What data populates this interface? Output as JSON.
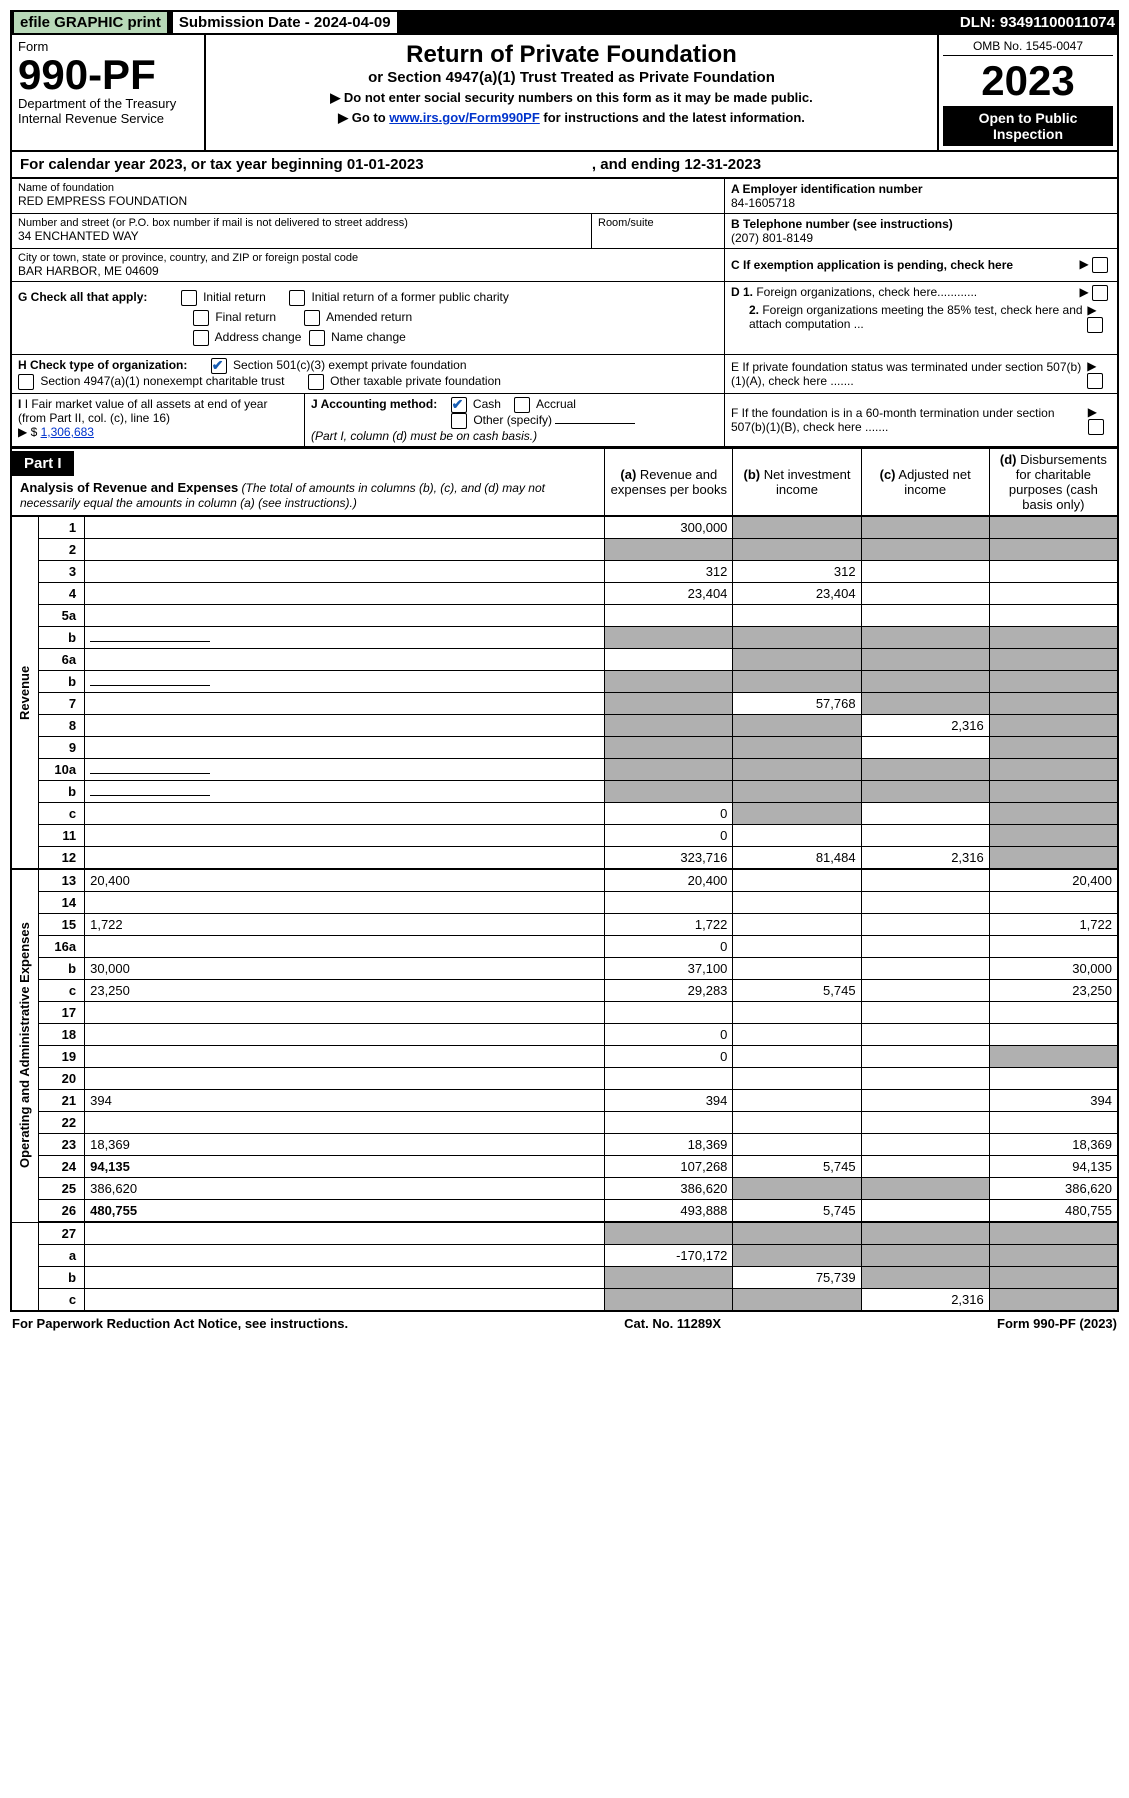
{
  "topbar": {
    "efile": "efile GRAPHIC print",
    "submission_label": "Submission Date - 2024-04-09",
    "dln": "DLN: 93491100011074"
  },
  "header": {
    "form_label": "Form",
    "form_no": "990-PF",
    "dept": "Department of the Treasury",
    "irs": "Internal Revenue Service",
    "title": "Return of Private Foundation",
    "sub": "or Section 4947(a)(1) Trust Treated as Private Foundation",
    "note1": "▶ Do not enter social security numbers on this form as it may be made public.",
    "note2": "▶ Go to ",
    "note2_link": "www.irs.gov/Form990PF",
    "note2_tail": " for instructions and the latest information.",
    "omb": "OMB No. 1545-0047",
    "year": "2023",
    "open": "Open to Public Inspection"
  },
  "cal_year": {
    "prefix": "For calendar year 2023, or tax year beginning ",
    "begin": "01-01-2023",
    "mid": " , and ending ",
    "end": "12-31-2023"
  },
  "identity": {
    "name_label": "Name of foundation",
    "name": "RED EMPRESS FOUNDATION",
    "addr_label": "Number and street (or P.O. box number if mail is not delivered to street address)",
    "addr": "34 ENCHANTED WAY",
    "room_label": "Room/suite",
    "city_label": "City or town, state or province, country, and ZIP or foreign postal code",
    "city": "BAR HARBOR, ME  04609",
    "a_label": "A Employer identification number",
    "a_val": "84-1605718",
    "b_label": "B Telephone number (see instructions)",
    "b_val": "(207) 801-8149",
    "c_label": "C If exemption application is pending, check here",
    "d1_label": "D 1. Foreign organizations, check here............",
    "d2_label": "2. Foreign organizations meeting the 85% test, check here and attach computation ...",
    "e_label": "E  If private foundation status was terminated under section 507(b)(1)(A), check here .......",
    "f_label": "F  If the foundation is in a 60-month termination under section 507(b)(1)(B), check here .......",
    "g_label": "G Check all that apply:",
    "g_opts": [
      "Initial return",
      "Initial return of a former public charity",
      "Final return",
      "Amended return",
      "Address change",
      "Name change"
    ],
    "h_label": "H Check type of organization:",
    "h_opt1": "Section 501(c)(3) exempt private foundation",
    "h_opt2": "Section 4947(a)(1) nonexempt charitable trust",
    "h_opt3": "Other taxable private foundation",
    "i_label": "I Fair market value of all assets at end of year (from Part II, col. (c), line 16)",
    "i_val": "1,306,683",
    "j_label": "J Accounting method:",
    "j_cash": "Cash",
    "j_accrual": "Accrual",
    "j_other": "Other (specify)",
    "j_note": "(Part I, column (d) must be on cash basis.)"
  },
  "part1": {
    "title": "Part I",
    "heading": "Analysis of Revenue and Expenses",
    "heading_note": " (The total of amounts in columns (b), (c), and (d) may not necessarily equal the amounts in column (a) (see instructions).)",
    "cols": {
      "a": "(a) Revenue and expenses per books",
      "b": "(b) Net investment income",
      "c": "(c) Adjusted net income",
      "d": "(d) Disbursements for charitable purposes (cash basis only)"
    }
  },
  "sections": {
    "revenue": "Revenue",
    "expenses": "Operating and Administrative Expenses"
  },
  "lines": [
    {
      "n": "1",
      "d": "",
      "a": "300,000",
      "b": "",
      "c": "",
      "shade": [
        "b",
        "c",
        "d"
      ]
    },
    {
      "n": "2",
      "d": "",
      "a": "",
      "b": "",
      "c": "",
      "shade": [
        "a",
        "b",
        "c",
        "d"
      ],
      "dotted": true
    },
    {
      "n": "3",
      "d": "",
      "a": "312",
      "b": "312",
      "c": ""
    },
    {
      "n": "4",
      "d": "",
      "a": "23,404",
      "b": "23,404",
      "c": "",
      "dotted": true
    },
    {
      "n": "5a",
      "d": "",
      "a": "",
      "b": "",
      "c": "",
      "dotted": true
    },
    {
      "n": "b",
      "d": "",
      "a": "",
      "b": "",
      "c": "",
      "shade": [
        "a",
        "b",
        "c",
        "d"
      ],
      "inline": true
    },
    {
      "n": "6a",
      "d": "",
      "a": "",
      "b": "",
      "c": "",
      "shade": [
        "b",
        "c",
        "d"
      ]
    },
    {
      "n": "b",
      "d": "",
      "a": "",
      "b": "",
      "c": "",
      "shade": [
        "a",
        "b",
        "c",
        "d"
      ],
      "inline": true
    },
    {
      "n": "7",
      "d": "",
      "a": "",
      "b": "57,768",
      "c": "",
      "shade": [
        "a",
        "c",
        "d"
      ],
      "dotted": true
    },
    {
      "n": "8",
      "d": "",
      "a": "",
      "b": "",
      "c": "2,316",
      "shade": [
        "a",
        "b",
        "d"
      ],
      "dotted": true
    },
    {
      "n": "9",
      "d": "",
      "a": "",
      "b": "",
      "c": "",
      "shade": [
        "a",
        "b",
        "d"
      ],
      "dotted": true
    },
    {
      "n": "10a",
      "d": "",
      "a": "",
      "b": "",
      "c": "",
      "shade": [
        "a",
        "b",
        "c",
        "d"
      ],
      "inline": true
    },
    {
      "n": "b",
      "d": "",
      "a": "",
      "b": "",
      "c": "",
      "shade": [
        "a",
        "b",
        "c",
        "d"
      ],
      "inline": true,
      "dotted": true
    },
    {
      "n": "c",
      "d": "",
      "a": "0",
      "b": "",
      "c": "",
      "shade": [
        "b",
        "d"
      ],
      "dotted": true
    },
    {
      "n": "11",
      "d": "",
      "a": "0",
      "b": "",
      "c": "",
      "shade": [
        "d"
      ],
      "dotted": true
    },
    {
      "n": "12",
      "d": "",
      "a": "323,716",
      "b": "81,484",
      "c": "2,316",
      "bold": true,
      "shade": [
        "d"
      ],
      "dotted": true
    }
  ],
  "exp_lines": [
    {
      "n": "13",
      "d": "20,400",
      "a": "20,400",
      "b": "",
      "c": ""
    },
    {
      "n": "14",
      "d": "",
      "a": "",
      "b": "",
      "c": "",
      "dotted": true
    },
    {
      "n": "15",
      "d": "1,722",
      "a": "1,722",
      "b": "",
      "c": "",
      "dotted": true
    },
    {
      "n": "16a",
      "d": "",
      "a": "0",
      "b": "",
      "c": "",
      "dotted": true
    },
    {
      "n": "b",
      "d": "30,000",
      "a": "37,100",
      "b": "",
      "c": "",
      "dotted": true
    },
    {
      "n": "c",
      "d": "23,250",
      "a": "29,283",
      "b": "5,745",
      "c": "",
      "dotted": true
    },
    {
      "n": "17",
      "d": "",
      "a": "",
      "b": "",
      "c": "",
      "dotted": true
    },
    {
      "n": "18",
      "d": "",
      "a": "0",
      "b": "",
      "c": "",
      "dotted": true
    },
    {
      "n": "19",
      "d": "",
      "a": "0",
      "b": "",
      "c": "",
      "shade": [
        "d"
      ],
      "dotted": true
    },
    {
      "n": "20",
      "d": "",
      "a": "",
      "b": "",
      "c": "",
      "dotted": true
    },
    {
      "n": "21",
      "d": "394",
      "a": "394",
      "b": "",
      "c": "",
      "dotted": true
    },
    {
      "n": "22",
      "d": "",
      "a": "",
      "b": "",
      "c": "",
      "dotted": true
    },
    {
      "n": "23",
      "d": "18,369",
      "a": "18,369",
      "b": "",
      "c": "",
      "dotted": true
    },
    {
      "n": "24",
      "d": "94,135",
      "a": "107,268",
      "b": "5,745",
      "c": "",
      "bold": true,
      "dotted": true
    },
    {
      "n": "25",
      "d": "386,620",
      "a": "386,620",
      "b": "",
      "c": "",
      "shade": [
        "b",
        "c"
      ],
      "dotted": true
    },
    {
      "n": "26",
      "d": "480,755",
      "a": "493,888",
      "b": "5,745",
      "c": "",
      "bold": true
    }
  ],
  "bottom_lines": [
    {
      "n": "27",
      "d": "",
      "a": "",
      "b": "",
      "c": "",
      "shade": [
        "a",
        "b",
        "c",
        "d"
      ]
    },
    {
      "n": "a",
      "d": "",
      "a": "-170,172",
      "b": "",
      "c": "",
      "bold": true,
      "shade": [
        "b",
        "c",
        "d"
      ]
    },
    {
      "n": "b",
      "d": "",
      "a": "",
      "b": "75,739",
      "c": "",
      "bold": true,
      "shade": [
        "a",
        "c",
        "d"
      ]
    },
    {
      "n": "c",
      "d": "",
      "a": "",
      "b": "",
      "c": "2,316",
      "bold": true,
      "shade": [
        "a",
        "b",
        "d"
      ],
      "dotted": true
    }
  ],
  "footer": {
    "left": "For Paperwork Reduction Act Notice, see instructions.",
    "mid": "Cat. No. 11289X",
    "right": "Form 990-PF (2023)"
  }
}
